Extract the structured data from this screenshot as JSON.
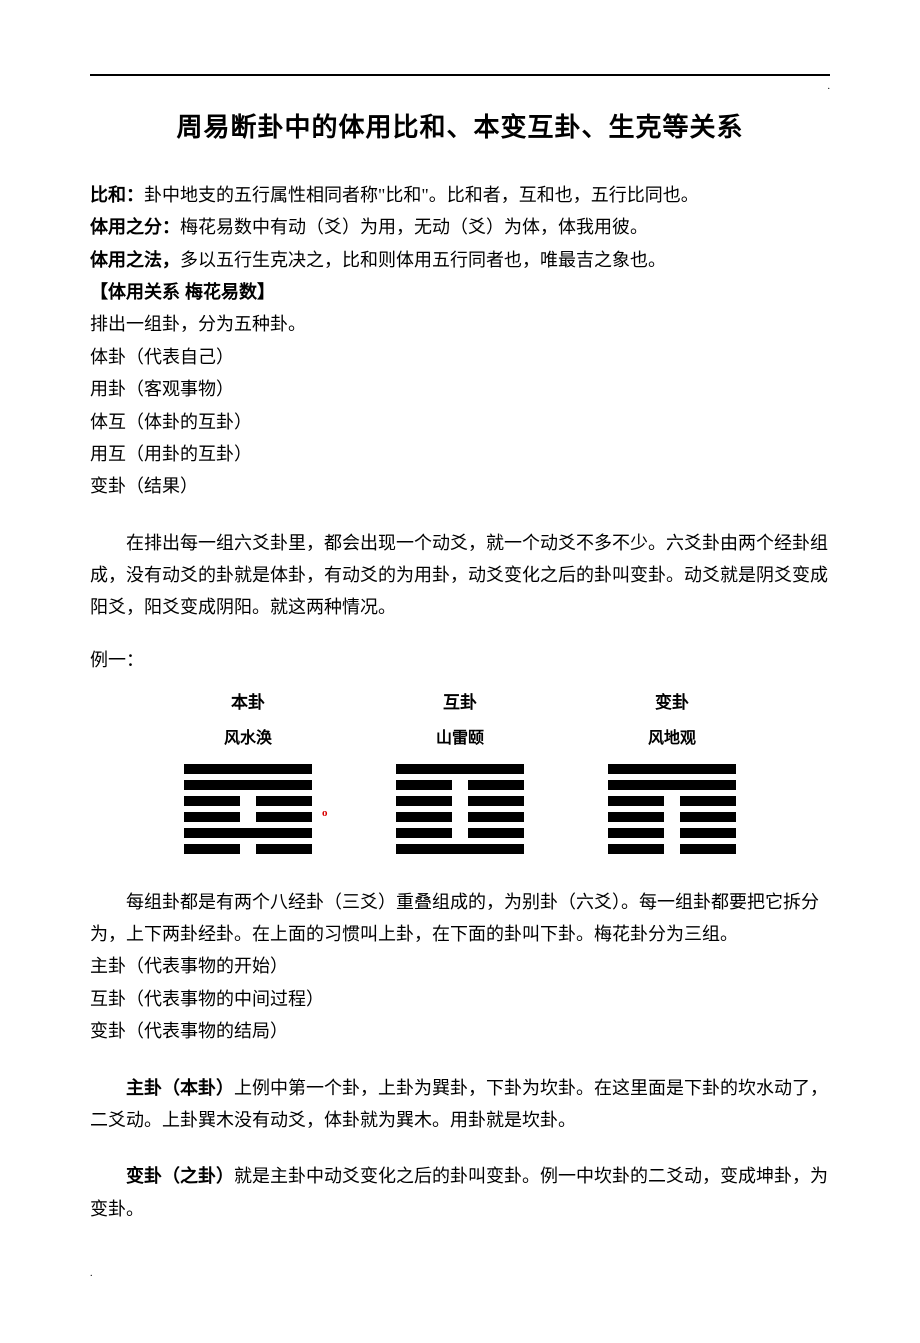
{
  "title": "周易断卦中的体用比和、本变互卦、生克等关系",
  "defs": {
    "bihe_label": "比和：",
    "bihe_text": "卦中地支的五行属性相同者称\"比和\"。比和者，互和也，五行比同也。",
    "tiyongfen_label": "体用之分：",
    "tiyongfen_text": "梅花易数中有动（爻）为用，无动（爻）为体，体我用彼。",
    "tiyongfa_label": "体用之法，",
    "tiyongfa_text": "多以五行生克决之，比和则体用五行同者也，唯最吉之象也。",
    "section_label": "【体用关系 梅花易数】",
    "intro": "排出一组卦，分为五种卦。",
    "items": [
      "体卦（代表自己）",
      "用卦（客观事物）",
      "体互（体卦的互卦）",
      "用互（用卦的互卦）",
      "变卦（结果）"
    ]
  },
  "para1": "在排出每一组六爻卦里，都会出现一个动爻，就一个动爻不多不少。六爻卦由两个经卦组成，没有动爻的卦就是体卦，有动爻的为用卦，动爻变化之后的卦叫变卦。动爻就是阴爻变成阳爻，阳爻变成阴阳。就这两种情况。",
  "example_label": "例一：",
  "hex": {
    "cols": [
      {
        "title": "本卦",
        "name": "风水涣",
        "lines": [
          "yang",
          "yang",
          "yin",
          "yin",
          "yang",
          "yin"
        ],
        "marker_index": 4
      },
      {
        "title": "互卦",
        "name": "山雷颐",
        "lines": [
          "yang",
          "yin",
          "yin",
          "yin",
          "yin",
          "yang"
        ]
      },
      {
        "title": "变卦",
        "name": "风地观",
        "lines": [
          "yang",
          "yang",
          "yin",
          "yin",
          "yin",
          "yin"
        ]
      }
    ],
    "marker_color": "#d80000",
    "line_color": "#000000"
  },
  "para2": "每组卦都是有两个八经卦（三爻）重叠组成的，为别卦（六爻）。每一组卦都要把它拆分为，上下两卦经卦。在上面的习惯叫上卦，在下面的卦叫下卦。梅花卦分为三组。",
  "three_groups": [
    "主卦（代表事物的开始）",
    "互卦（代表事物的中间过程）",
    "变卦（代表事物的结局）"
  ],
  "zhugua_label": "主卦（本卦）",
  "zhugua_text": "上例中第一个卦，上卦为巽卦，下卦为坎卦。在这里面是下卦的坎水动了，二爻动。上卦巽木没有动爻，体卦就为巽木。用卦就是坎卦。",
  "biangua_label": "变卦（之卦）",
  "biangua_text": "就是主卦中动爻变化之后的卦叫变卦。例一中坎卦的二爻动，变成坤卦，为变卦。",
  "corner": "."
}
